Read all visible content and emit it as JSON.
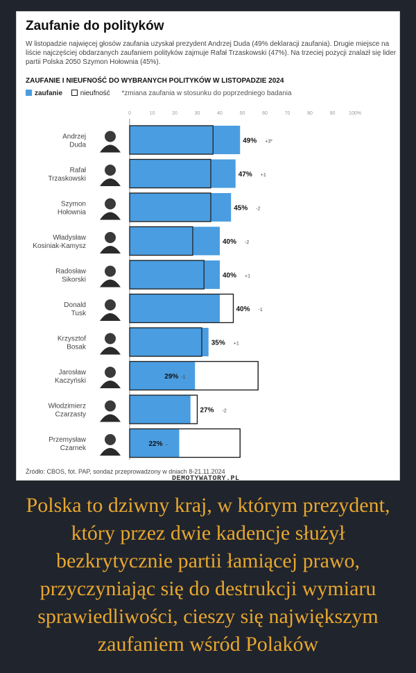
{
  "title": "Zaufanie do polityków",
  "intro": "W listopadzie najwięcej głosów zaufania uzyskał prezydent Andrzej Duda (49% deklaracji zaufania). Drugie miejsce na liście najczęściej obdarzanych zaufaniem polityków zajmuje Rafał Trzaskowski (47%). Na trzeciej pozycji znalazł się lider partii Polska 2050 Szymon Hołownia (45%).",
  "subtitle": "ZAUFANIE I NIEUFNOŚĆ DO WYBRANYCH POLITYKÓW W LISTOPADZIE 2024",
  "legend": {
    "trust": "zaufanie",
    "distrust": "nieufność",
    "note": "*zmiana zaufania w stosunku do poprzedniego badania"
  },
  "source": "Źródło: CBOS, fot. PAP, sondaż przeprowadzony w dniach 8-21.11.2024",
  "watermark": "DEMOTYWATORY.PL",
  "caption": "Polska to dziwny kraj, w którym prezydent, który przez dwie kadencje służył bezkrytycznie partii łamiącej prawo, przyczyniając się do destrukcji wymiaru sprawiedliwości, cieszy się największym zaufaniem wśród Polaków",
  "colors": {
    "trust": "#4a9de0",
    "distrust_fill": "#ffffff",
    "outline": "#1a1a1a",
    "caption": "#e8a72f",
    "background": "#20242c"
  },
  "chart_data": {
    "type": "bar",
    "orientation": "horizontal",
    "xlim": [
      0,
      100
    ],
    "ticks": [
      "0",
      "10",
      "20",
      "30",
      "40",
      "50",
      "60",
      "70",
      "80",
      "90",
      "100%"
    ],
    "categories": [
      [
        "Andrzej",
        "Duda"
      ],
      [
        "Rafał",
        "Trzaskowski"
      ],
      [
        "Szymon",
        "Hołownia"
      ],
      [
        "Władysław",
        "Kosiniak-Kamysz"
      ],
      [
        "Radosław",
        "Sikorski"
      ],
      [
        "Donald",
        "Tusk"
      ],
      [
        "Krzysztof",
        "Bosak"
      ],
      [
        "Jarosław",
        "Kaczyński"
      ],
      [
        "Włodzimierz",
        "Czarzasty"
      ],
      [
        "Przemysław",
        "Czarnek"
      ]
    ],
    "series": [
      {
        "name": "zaufanie",
        "values": [
          49,
          47,
          45,
          40,
          40,
          40,
          35,
          29,
          27,
          22
        ]
      },
      {
        "name": "nieufność",
        "values": [
          37,
          36,
          36,
          28,
          33,
          46,
          32,
          57,
          30,
          49
        ]
      }
    ],
    "value_labels": [
      "49%",
      "47%",
      "45%",
      "40%",
      "40%",
      "40%",
      "35%",
      "29%",
      "27%",
      "22%"
    ],
    "change_labels": [
      "+3*",
      "+1",
      "-2",
      "-2",
      "+1",
      "-1",
      "+1",
      "-1",
      "-2",
      "–"
    ]
  }
}
